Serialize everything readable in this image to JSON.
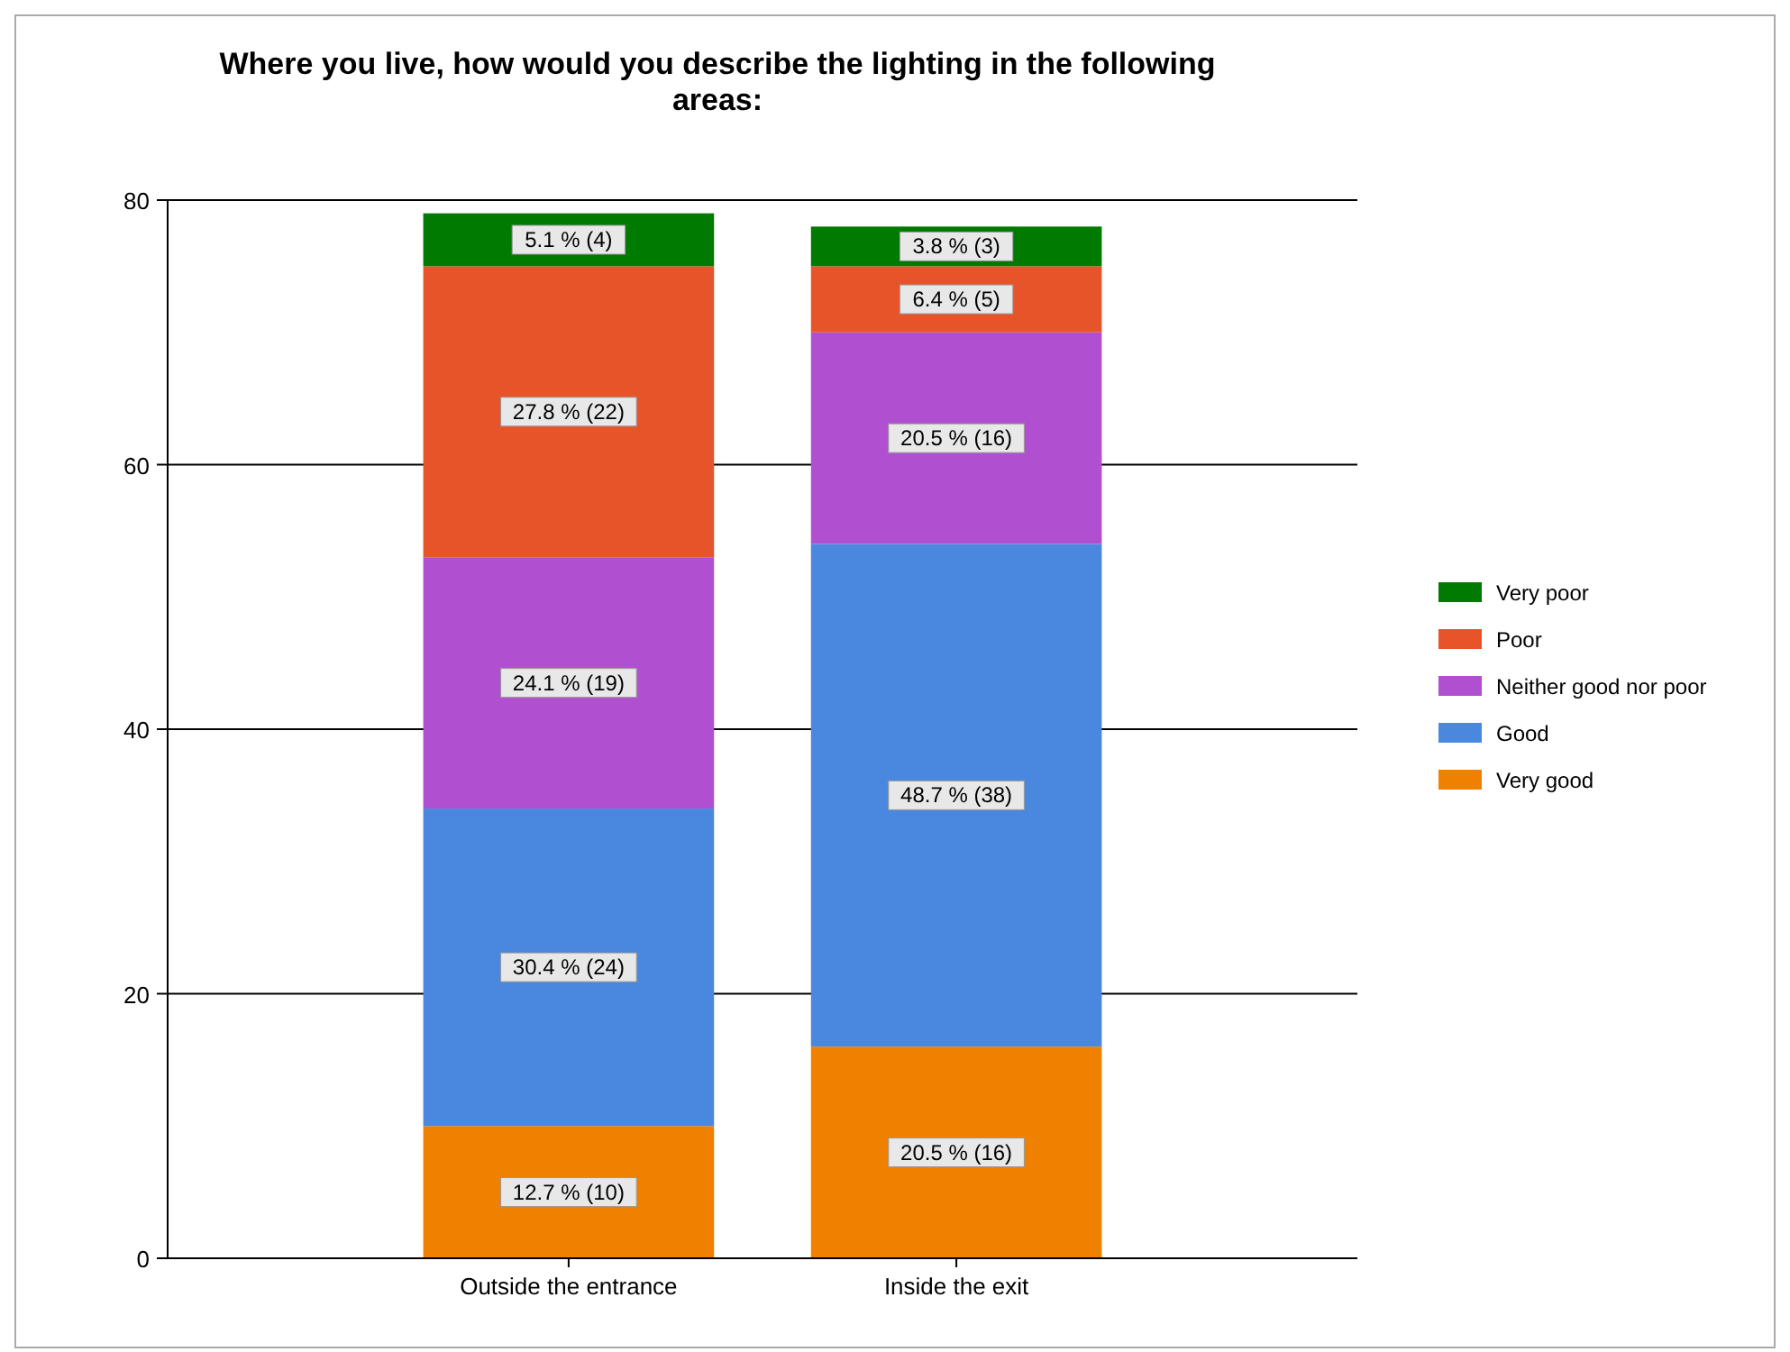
{
  "chart_data": {
    "type": "bar",
    "stacked": true,
    "title": "Where you live, how would you describe the lighting in the following areas:",
    "categories": [
      "Outside the entrance",
      "Inside the exit"
    ],
    "series": [
      {
        "name": "Very good",
        "color": "#f08000",
        "values": [
          10,
          16
        ],
        "value_labels": [
          "12.7 % (10)",
          "20.5 % (16)"
        ]
      },
      {
        "name": "Good",
        "color": "#4a88e0",
        "values": [
          24,
          38
        ],
        "value_labels": [
          "30.4 % (24)",
          "48.7 % (38)"
        ]
      },
      {
        "name": "Neither good nor poor",
        "color": "#b050d0",
        "values": [
          19,
          16
        ],
        "value_labels": [
          "24.1 % (19)",
          "20.5 % (16)"
        ]
      },
      {
        "name": "Poor",
        "color": "#e8542a",
        "values": [
          22,
          5
        ],
        "value_labels": [
          "27.8 % (22)",
          "6.4 % (5)"
        ]
      },
      {
        "name": "Very poor",
        "color": "#007a00",
        "values": [
          4,
          3
        ],
        "value_labels": [
          "5.1 % (4)",
          "3.8 % (3)"
        ]
      }
    ],
    "ylim": [
      0,
      80
    ],
    "yticks": [
      0,
      20,
      40,
      60,
      80
    ],
    "grid": "y",
    "legend": "right"
  }
}
